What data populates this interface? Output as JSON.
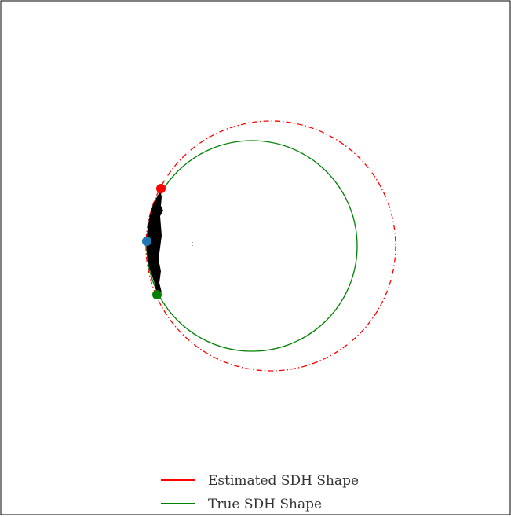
{
  "legend": {
    "estimated_label": "Estimated SDH Shape",
    "true_label": "True SDH Shape"
  },
  "colors": {
    "estimated": "#ff0000",
    "true": "#008000",
    "point_top": "#ff0000",
    "point_left": "#1f77b4",
    "point_bottom": "#008000",
    "fill": "#000000",
    "frame": "#000000"
  },
  "shapes": {
    "estimated": {
      "line_style": "dash-dot"
    },
    "true": {
      "line_style": "solid"
    }
  },
  "markers": [
    "point-top",
    "point-left",
    "point-bottom"
  ]
}
